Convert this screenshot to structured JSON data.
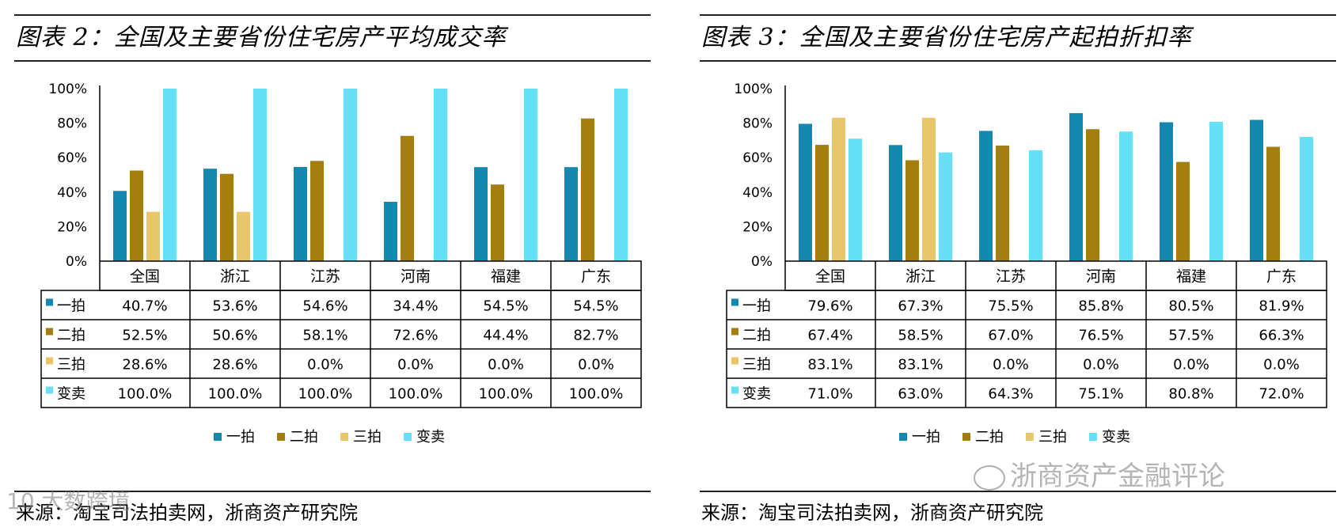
{
  "left_panel": {
    "title": "图表 2：全国及主要省份住宅房产平均成交率",
    "source": "来源：淘宝司法拍卖网，浙商资产研究院"
  },
  "right_panel": {
    "title": "图表 3：全国及主要省份住宅房产起拍折扣率",
    "source": "来源：淘宝司法拍卖网，浙商资产研究院"
  },
  "watermarks": {
    "left": "10 大数跨境",
    "right": "浙商资产金融评论"
  },
  "colors": {
    "一拍": "#1488b1",
    "二拍": "#a47e0e",
    "三拍": "#e9c66a",
    "变卖": "#66e0f6"
  },
  "chart_data": [
    {
      "type": "bar",
      "title": "全国及主要省份住宅房产平均成交率",
      "categories": [
        "全国",
        "浙江",
        "江苏",
        "河南",
        "福建",
        "广东"
      ],
      "ylim": [
        0,
        100
      ],
      "yticks": [
        "0%",
        "20%",
        "40%",
        "60%",
        "80%",
        "100%"
      ],
      "legend_position": "bottom",
      "series": [
        {
          "name": "一拍",
          "values": [
            40.7,
            53.6,
            54.6,
            34.4,
            54.5,
            54.5
          ],
          "labels": [
            "40.7%",
            "53.6%",
            "54.6%",
            "34.4%",
            "54.5%",
            "54.5%"
          ]
        },
        {
          "name": "二拍",
          "values": [
            52.5,
            50.6,
            58.1,
            72.6,
            44.4,
            82.7
          ],
          "labels": [
            "52.5%",
            "50.6%",
            "58.1%",
            "72.6%",
            "44.4%",
            "82.7%"
          ]
        },
        {
          "name": "三拍",
          "values": [
            28.6,
            28.6,
            0.0,
            0.0,
            0.0,
            0.0
          ],
          "labels": [
            "28.6%",
            "28.6%",
            "0.0%",
            "0.0%",
            "0.0%",
            "0.0%"
          ]
        },
        {
          "name": "变卖",
          "values": [
            100.0,
            100.0,
            100.0,
            100.0,
            100.0,
            100.0
          ],
          "labels": [
            "100.0%",
            "100.0%",
            "100.0%",
            "100.0%",
            "100.0%",
            "100.0%"
          ]
        }
      ]
    },
    {
      "type": "bar",
      "title": "全国及主要省份住宅房产起拍折扣率",
      "categories": [
        "全国",
        "浙江",
        "江苏",
        "河南",
        "福建",
        "广东"
      ],
      "ylim": [
        0,
        100
      ],
      "yticks": [
        "0%",
        "20%",
        "40%",
        "60%",
        "80%",
        "100%"
      ],
      "legend_position": "bottom",
      "series": [
        {
          "name": "一拍",
          "values": [
            79.6,
            67.3,
            75.5,
            85.8,
            80.5,
            81.9
          ],
          "labels": [
            "79.6%",
            "67.3%",
            "75.5%",
            "85.8%",
            "80.5%",
            "81.9%"
          ]
        },
        {
          "name": "二拍",
          "values": [
            67.4,
            58.5,
            67.0,
            76.5,
            57.5,
            66.3
          ],
          "labels": [
            "67.4%",
            "58.5%",
            "67.0%",
            "76.5%",
            "57.5%",
            "66.3%"
          ]
        },
        {
          "name": "三拍",
          "values": [
            83.1,
            83.1,
            0.0,
            0.0,
            0.0,
            0.0
          ],
          "labels": [
            "83.1%",
            "83.1%",
            "0.0%",
            "0.0%",
            "0.0%",
            "0.0%"
          ]
        },
        {
          "name": "变卖",
          "values": [
            71.0,
            63.0,
            64.3,
            75.1,
            80.8,
            72.0
          ],
          "labels": [
            "71.0%",
            "63.0%",
            "64.3%",
            "75.1%",
            "80.8%",
            "72.0%"
          ]
        }
      ]
    }
  ]
}
